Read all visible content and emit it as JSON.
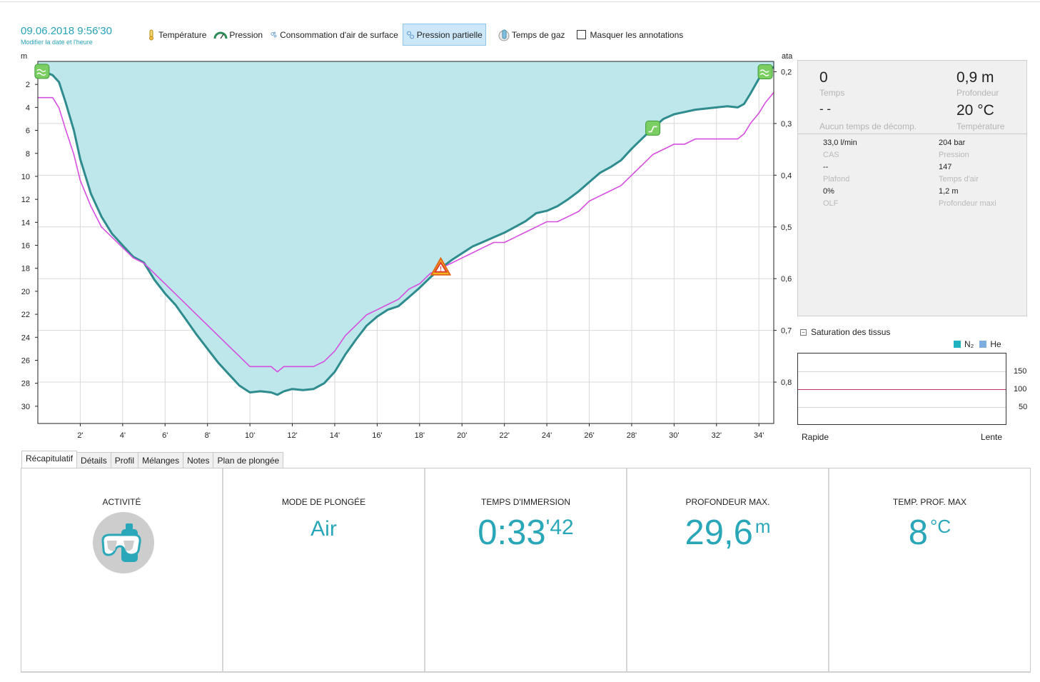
{
  "header": {
    "datetime": "09.06.2018 9:56'30",
    "edit_link": "Modifier la date et l'heure"
  },
  "toolbar": {
    "items": [
      {
        "label": "Température",
        "icon": "thermometer-icon",
        "active": false
      },
      {
        "label": "Pression",
        "icon": "gauge-icon",
        "active": false
      },
      {
        "label": "Consommation d'air de surface",
        "icon": "bubbles-icon",
        "active": false
      },
      {
        "label": "Pression partielle",
        "icon": "partial-pressure-icon",
        "active": true
      },
      {
        "label": "Temps de gaz",
        "icon": "tank-clock-icon",
        "active": false
      }
    ],
    "hide_annotations_label": "Masquer les annotations",
    "hide_annotations_checked": false
  },
  "chart_data": {
    "type": "area",
    "left_axis_unit": "m",
    "right_axis_unit": "ata",
    "ylim_depth": [
      0,
      31.5
    ],
    "y_ticks_depth": [
      "2",
      "4",
      "6",
      "8",
      "10",
      "12",
      "14",
      "16",
      "18",
      "20",
      "22",
      "24",
      "26",
      "28",
      "30"
    ],
    "ylim_ppo2": [
      0.18,
      0.88
    ],
    "y_ticks_ppo2": [
      "0,2",
      "0,3",
      "0,4",
      "0,5",
      "0,6",
      "0,7",
      "0,8"
    ],
    "xlim_min": [
      0,
      34.7
    ],
    "x_ticks": [
      "2'",
      "4'",
      "6'",
      "8'",
      "10'",
      "12'",
      "14'",
      "16'",
      "18'",
      "20'",
      "22'",
      "24'",
      "26'",
      "28'",
      "30'",
      "32'",
      "34'"
    ],
    "series": [
      {
        "color": "#2e8b8e",
        "fill": "#bde7ea",
        "x": [
          0,
          0.3,
          0.7,
          1.0,
          1.3,
          1.7,
          2.0,
          2.5,
          3.0,
          3.5,
          4.0,
          4.5,
          5.0,
          5.5,
          6.0,
          6.5,
          7.0,
          7.5,
          8.0,
          8.5,
          9.0,
          9.5,
          10.0,
          10.5,
          11.0,
          11.3,
          11.6,
          12.0,
          12.5,
          13.0,
          13.5,
          14.0,
          14.5,
          15.0,
          15.5,
          16.0,
          16.5,
          17.0,
          17.5,
          18.0,
          18.5,
          19.0,
          19.5,
          20.0,
          20.5,
          21.0,
          21.5,
          22.0,
          22.5,
          23.0,
          23.5,
          24.0,
          24.5,
          25.0,
          25.5,
          26.0,
          26.5,
          27.0,
          27.5,
          28.0,
          28.5,
          29.0,
          29.5,
          30.0,
          30.5,
          31.0,
          31.5,
          32.0,
          32.5,
          33.0,
          33.3,
          33.6,
          34.0,
          34.3,
          34.7
        ],
        "y": [
          0.8,
          0.9,
          1.2,
          1.8,
          3.5,
          6.0,
          8.5,
          11.5,
          13.5,
          15.0,
          16.0,
          17.0,
          17.5,
          19.0,
          20.2,
          21.2,
          22.5,
          23.8,
          25.0,
          26.2,
          27.2,
          28.2,
          28.8,
          28.7,
          28.8,
          29.0,
          28.7,
          28.5,
          28.6,
          28.5,
          28.0,
          27.0,
          25.5,
          24.2,
          23.0,
          22.2,
          21.6,
          21.3,
          20.5,
          19.7,
          18.8,
          18.0,
          17.3,
          16.7,
          16.1,
          15.7,
          15.3,
          14.9,
          14.4,
          13.9,
          13.2,
          13.0,
          12.6,
          12.0,
          11.3,
          10.5,
          9.7,
          9.2,
          8.6,
          7.6,
          6.7,
          5.8,
          5.0,
          4.6,
          4.4,
          4.2,
          4.1,
          4.0,
          3.9,
          4.0,
          3.7,
          2.8,
          1.5,
          0.9,
          0.5
        ]
      },
      {
        "color": "#d64ee0",
        "x": [
          0,
          0.3,
          0.7,
          1.0,
          1.3,
          1.7,
          2.0,
          2.5,
          3.0,
          3.5,
          4.0,
          4.5,
          5.0,
          5.5,
          6.0,
          6.5,
          7.0,
          7.5,
          8.0,
          8.5,
          9.0,
          9.5,
          10.0,
          10.5,
          11.0,
          11.3,
          11.6,
          12.0,
          12.5,
          13.0,
          13.5,
          14.0,
          14.5,
          15.0,
          15.5,
          16.0,
          16.5,
          17.0,
          17.5,
          18.0,
          18.5,
          19.0,
          19.5,
          20.0,
          20.5,
          21.0,
          21.5,
          22.0,
          22.5,
          23.0,
          23.5,
          24.0,
          24.5,
          25.0,
          25.5,
          26.0,
          26.5,
          27.0,
          27.5,
          28.0,
          28.5,
          29.0,
          29.5,
          30.0,
          30.5,
          31.0,
          31.5,
          32.0,
          32.5,
          33.0,
          33.3,
          33.6,
          34.0,
          34.3,
          34.7
        ],
        "y": [
          0.25,
          0.25,
          0.25,
          0.27,
          0.31,
          0.36,
          0.41,
          0.46,
          0.5,
          0.52,
          0.54,
          0.56,
          0.57,
          0.59,
          0.61,
          0.63,
          0.65,
          0.67,
          0.69,
          0.71,
          0.73,
          0.75,
          0.77,
          0.77,
          0.77,
          0.78,
          0.77,
          0.77,
          0.77,
          0.77,
          0.76,
          0.74,
          0.71,
          0.69,
          0.67,
          0.66,
          0.65,
          0.64,
          0.62,
          0.61,
          0.59,
          0.58,
          0.57,
          0.56,
          0.55,
          0.54,
          0.53,
          0.53,
          0.52,
          0.51,
          0.5,
          0.49,
          0.49,
          0.48,
          0.47,
          0.45,
          0.44,
          0.43,
          0.42,
          0.4,
          0.38,
          0.36,
          0.35,
          0.34,
          0.34,
          0.33,
          0.33,
          0.33,
          0.33,
          0.33,
          0.32,
          0.3,
          0.28,
          0.26,
          0.24
        ]
      }
    ],
    "annotations": [
      {
        "icon": "surface-icon",
        "x": 0.2
      },
      {
        "icon": "warning-icon",
        "x": 19.0
      },
      {
        "icon": "ascent-icon",
        "x": 29.0
      },
      {
        "icon": "surface-end-icon",
        "x": 34.3
      }
    ]
  },
  "info_panel": {
    "time_value": "0",
    "time_label": "Temps",
    "depth_value": "0,9 m",
    "depth_label": "Profondeur",
    "deco_value": "- -",
    "deco_label": "Aucun temps de décomp.",
    "temp_value": "20 °C",
    "temp_label": "Température",
    "details": [
      {
        "value": "33,0 l/min",
        "label": "CAS"
      },
      {
        "value": "204 bar",
        "label": "Pression"
      },
      {
        "value": "--",
        "label": "Plafond"
      },
      {
        "value": "147",
        "label": "Temps d'air"
      },
      {
        "value": "0%",
        "label": "OLF"
      },
      {
        "value": "1,2 m",
        "label": "Profondeur maxi"
      }
    ]
  },
  "saturation": {
    "title": "Saturation des tissus",
    "legend_n2": "N₂",
    "legend_he": "He",
    "n2_color": "#1fb3c2",
    "he_color": "#7eaee0",
    "ticks": [
      "150",
      "100",
      "50"
    ],
    "left_label": "Rapide",
    "right_label": "Lente"
  },
  "tabs": [
    "Récapitulatif",
    "Détails",
    "Profil",
    "Mélanges",
    "Notes",
    "Plan de plongée"
  ],
  "summary": {
    "activity_title": "ACTIVITÉ",
    "mode_title": "MODE DE PLONGÉE",
    "mode_value": "Air",
    "immersion_title": "TEMPS D'IMMERSION",
    "immersion_main": "0:33",
    "immersion_sec": "'42",
    "maxdepth_title": "PROFONDEUR MAX.",
    "maxdepth_value": "29,6",
    "maxdepth_unit": "m",
    "temp_title": "TEMP. PROF. MAX",
    "temp_value": "8",
    "temp_unit": "°C"
  }
}
